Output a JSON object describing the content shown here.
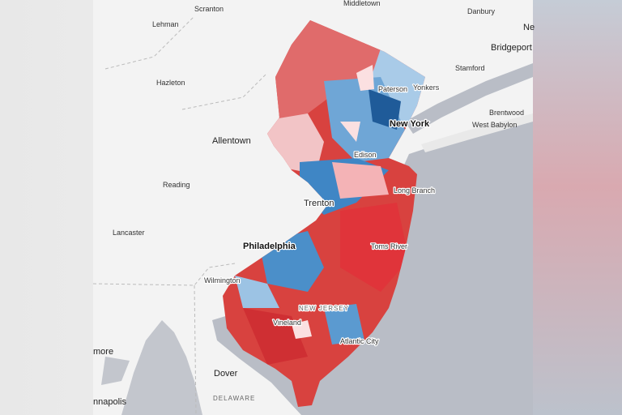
{
  "labels": [
    "Scranton",
    "Middletown",
    "Danbury",
    "Lehman",
    "Bridgeport",
    "Ne",
    "Stamford",
    "Yonkers",
    "Hazleton",
    "Paterson",
    "Brentwood",
    "New York",
    "West Babylon",
    "Allentown",
    "Edison",
    "Reading",
    "Long Branch",
    "Trenton",
    "Lancaster",
    "Philadelphia",
    "Toms River",
    "Wilmington",
    "NEW JERSEY",
    "Vineland",
    "more",
    "Atlantic City",
    "Dover",
    "DELAWARE",
    "nnapolis"
  ]
}
